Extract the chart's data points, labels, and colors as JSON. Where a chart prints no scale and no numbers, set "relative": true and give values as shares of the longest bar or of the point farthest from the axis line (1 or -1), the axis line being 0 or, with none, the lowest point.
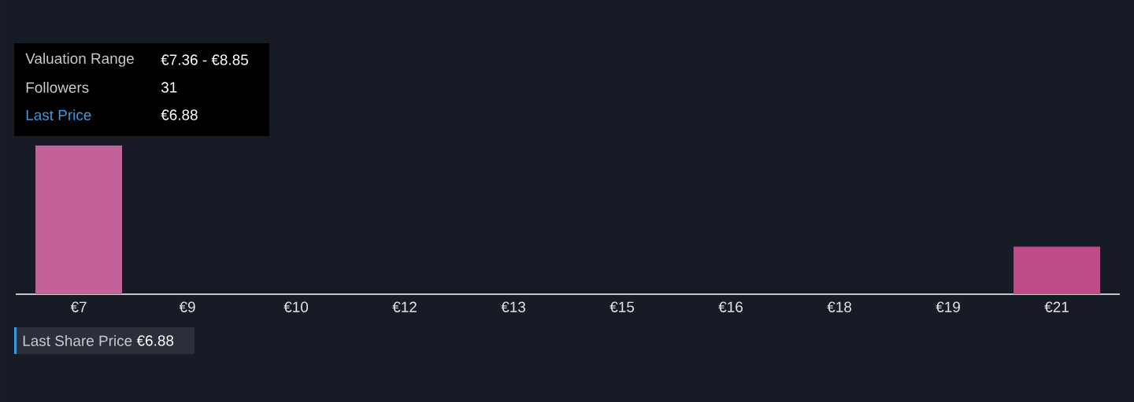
{
  "chart_data": {
    "type": "bar",
    "relative": true,
    "categories": [
      "€7",
      "€9",
      "€10",
      "€12",
      "€13",
      "€15",
      "€16",
      "€18",
      "€19",
      "€21"
    ],
    "values": [
      1,
      null,
      null,
      null,
      null,
      null,
      null,
      null,
      null,
      0.32
    ],
    "colors": [
      "#c5619a",
      null,
      null,
      null,
      null,
      null,
      null,
      null,
      null,
      "#bd4d8a"
    ],
    "annotations": [
      "Valuation Range",
      "€7.36 - €8.85",
      "Followers",
      "31",
      "Last Price",
      "€6.88",
      "Last Share Price",
      "€6.88"
    ]
  }
}
